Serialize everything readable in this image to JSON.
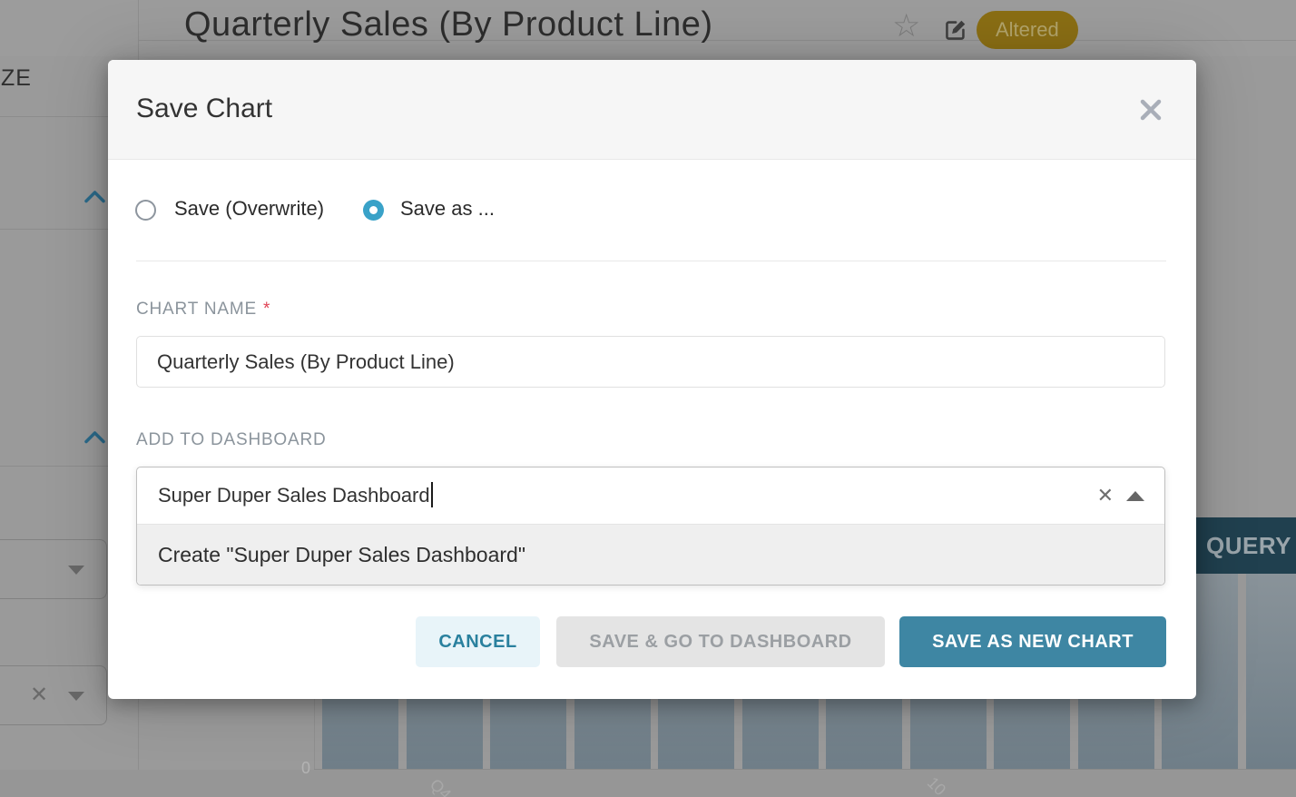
{
  "colors": {
    "primary_accent": "#39a2c8",
    "primary_button_bg": "#3e86a3",
    "cancel_button_bg": "#e8f4f9",
    "cancel_button_text": "#29809e",
    "disabled_button_bg": "#e4e4e4",
    "disabled_button_text": "#9b9fa3",
    "required_asterisk": "#e04355",
    "altered_badge_bg": "#8a6e14",
    "query_panel_bg": "#20404f",
    "modal_header_bg": "#f6f6f6"
  },
  "background": {
    "page_title": "Quarterly Sales (By Product Line)",
    "altered_badge_label": "Altered",
    "query_panel_label": "QUERY",
    "sidebar": {
      "tab_label_fragment": "ZE",
      "clear_icon": "✕"
    },
    "icons": {
      "star": "☆",
      "edit": "pencil-square",
      "chevron_up": "chevron-up",
      "caret_down": "filled-triangle-down"
    },
    "chart": {
      "type": "bar",
      "visible_bar_count": 12,
      "y_axis_tick": "0",
      "x_axis_tick_fragments": [
        "Q4",
        "10"
      ]
    }
  },
  "modal": {
    "title": "Save Chart",
    "close_icon": "✕",
    "radio_overwrite_label": "Save (Overwrite)",
    "radio_save_as_label": "Save as ...",
    "chart_name_label": "CHART NAME",
    "required_marker": "*",
    "chart_name_value": "Quarterly Sales (By Product Line)",
    "add_to_dashboard_label": "ADD TO DASHBOARD",
    "dashboard_input_value": "Super Duper Sales Dashboard",
    "clear_icon": "✕",
    "caret_icon": "filled-triangle-up",
    "dropdown_option_create": "Create \"Super Duper Sales Dashboard\"",
    "footer": {
      "cancel_label": "CANCEL",
      "save_go_dashboard_label": "SAVE & GO TO DASHBOARD",
      "save_as_new_chart_label": "SAVE AS NEW CHART"
    }
  }
}
